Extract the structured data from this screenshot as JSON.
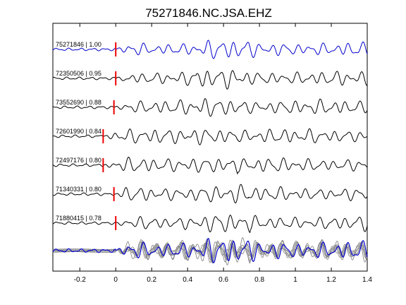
{
  "chart_data": {
    "type": "line",
    "title": "75271846.NC.JSA.EHZ",
    "xlabel": "",
    "ylabel": "",
    "xlim": [
      -0.35,
      1.4
    ],
    "xticks": [
      -0.2,
      0,
      0.2,
      0.4,
      0.6,
      0.8,
      1,
      1.2,
      1.4
    ],
    "xtick_labels": [
      "-0.2",
      "0",
      "0.2",
      "0.4",
      "0.6",
      "0.8",
      "1",
      "1.2",
      "1.4"
    ],
    "grid": false,
    "legend": "none",
    "colors": {
      "reference": "#0000cc",
      "trace": "#000000",
      "marker": "#ee0000",
      "stack": "#888888"
    },
    "series": [
      {
        "label": "75271846 | 1.00",
        "pick_time": 0.0,
        "reference": true
      },
      {
        "label": "72350506 | 0.95",
        "pick_time": 0.0
      },
      {
        "label": "73552690 | 0.88",
        "pick_time": -0.01
      },
      {
        "label": "72601990 | 0.84",
        "pick_time": -0.07
      },
      {
        "label": "72497176 | 0.80",
        "pick_time": -0.07
      },
      {
        "label": "71340331 | 0.80",
        "pick_time": -0.01
      },
      {
        "label": "71880415 | 0.78",
        "pick_time": 0.0
      }
    ],
    "stack": {
      "description": "overlay of all traces",
      "count": 7
    }
  }
}
